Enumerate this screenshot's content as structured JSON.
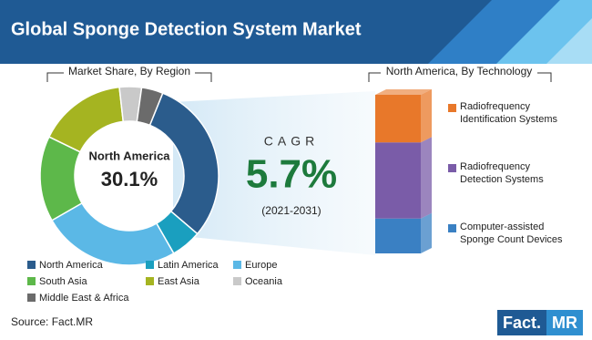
{
  "header": {
    "title": "Global Sponge Detection System Market"
  },
  "chart_data": [
    {
      "type": "pie",
      "subtitle": "Market Share, By Region",
      "categories": [
        "North America",
        "Latin America",
        "Europe",
        "South Asia",
        "East Asia",
        "Oceania",
        "Middle East & Africa"
      ],
      "values": [
        30.1,
        5.5,
        25,
        15.5,
        16,
        4,
        3.9
      ],
      "value_labels": [
        "30.1%",
        null,
        null,
        null,
        null,
        null,
        null
      ],
      "colors": [
        "#2b5c8c",
        "#1a9fbf",
        "#5bb8e6",
        "#5db84a",
        "#a5b421",
        "#c9c9c9",
        "#6b6b6b"
      ]
    },
    {
      "type": "stacked-bar",
      "subtitle": "North America, By Technology",
      "categories": [
        null
      ],
      "series": [
        {
          "name": "Computer-assisted Sponge Count Devices",
          "color": "#3a80c3",
          "values": [
            22
          ]
        },
        {
          "name": "Radiofrequency Detection Systems",
          "color": "#7a5ca8",
          "values": [
            48
          ]
        },
        {
          "name": "Radiofrequency Identification Systems",
          "color": "#e8782a",
          "values": [
            30
          ]
        }
      ]
    }
  ],
  "cagr": {
    "label": "CAGR",
    "value": "5.7%",
    "period": "(2021-2031)"
  },
  "source": "Source: Fact.MR",
  "logo": {
    "part1": "Fact.",
    "part2": "MR"
  }
}
